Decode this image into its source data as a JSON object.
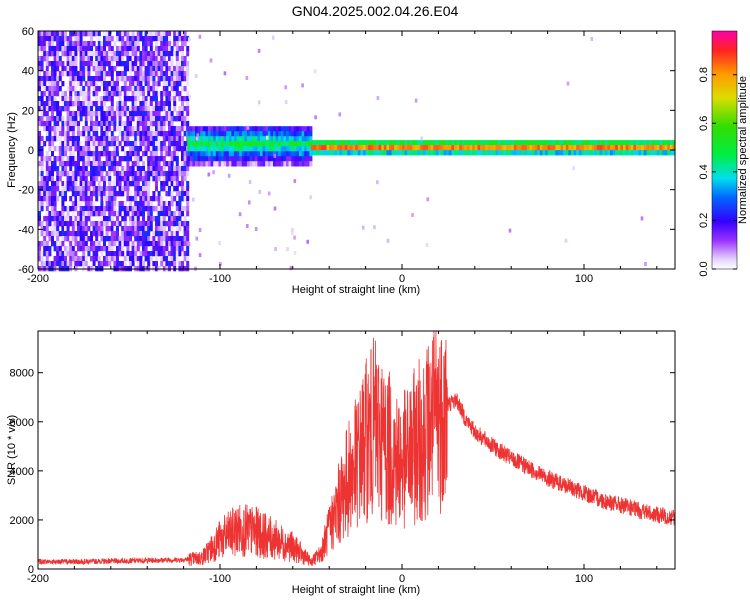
{
  "title": "GN04.2025.002.04.26.E04",
  "chart_data": [
    {
      "type": "heatmap",
      "xlabel": "Height of straight line (km)",
      "ylabel": "Frequency (Hz)",
      "xlim": [
        -200,
        150
      ],
      "ylim": [
        -60,
        60
      ],
      "xticks": [
        -200,
        -100,
        0,
        100
      ],
      "yticks": [
        -60,
        -40,
        -20,
        0,
        20,
        40,
        60
      ],
      "grid": false,
      "colorbar": {
        "label": "Normalized spectral amplitude",
        "range": [
          0,
          0.98
        ],
        "ticks": [
          0.0,
          0.2,
          0.4,
          0.6,
          0.8
        ]
      },
      "regions": [
        {
          "x": [
            -200,
            -118
          ],
          "y": [
            -60,
            60
          ],
          "amplitude": [
            0.02,
            0.25
          ]
        },
        {
          "x": [
            -118,
            -50
          ],
          "y": [
            -6,
            12
          ],
          "amplitude": [
            0.2,
            0.5
          ]
        },
        {
          "x": [
            -50,
            150
          ],
          "y": [
            -2,
            5
          ],
          "amplitude": [
            0.35,
            0.95
          ]
        }
      ]
    },
    {
      "type": "line",
      "xlabel": "Height of straight line (km)",
      "ylabel": "SNR (10 * v/v)",
      "xlim": [
        -200,
        150
      ],
      "ylim": [
        0,
        9700
      ],
      "xticks": [
        -200,
        -100,
        0,
        100
      ],
      "yticks": [
        0,
        2000,
        4000,
        6000,
        8000
      ],
      "grid": false,
      "series": [
        {
          "color": "#ee3333",
          "x": [
            -200,
            -180,
            -160,
            -140,
            -120,
            -110,
            -100,
            -90,
            -80,
            -70,
            -60,
            -50,
            -45,
            -40,
            -35,
            -30,
            -25,
            -20,
            -15,
            -10,
            -5,
            0,
            5,
            10,
            15,
            20,
            25,
            30,
            35,
            40,
            50,
            60,
            70,
            80,
            90,
            100,
            110,
            120,
            130,
            140,
            150
          ],
          "values": [
            300,
            300,
            320,
            350,
            380,
            450,
            1200,
            1600,
            1500,
            1200,
            900,
            300,
            600,
            1600,
            2600,
            3600,
            4300,
            5200,
            5800,
            5200,
            4700,
            4300,
            4800,
            5300,
            5800,
            6300,
            6700,
            6900,
            6100,
            5600,
            5000,
            4500,
            4100,
            3700,
            3400,
            3100,
            2800,
            2600,
            2400,
            2200,
            2100
          ]
        }
      ]
    }
  ]
}
